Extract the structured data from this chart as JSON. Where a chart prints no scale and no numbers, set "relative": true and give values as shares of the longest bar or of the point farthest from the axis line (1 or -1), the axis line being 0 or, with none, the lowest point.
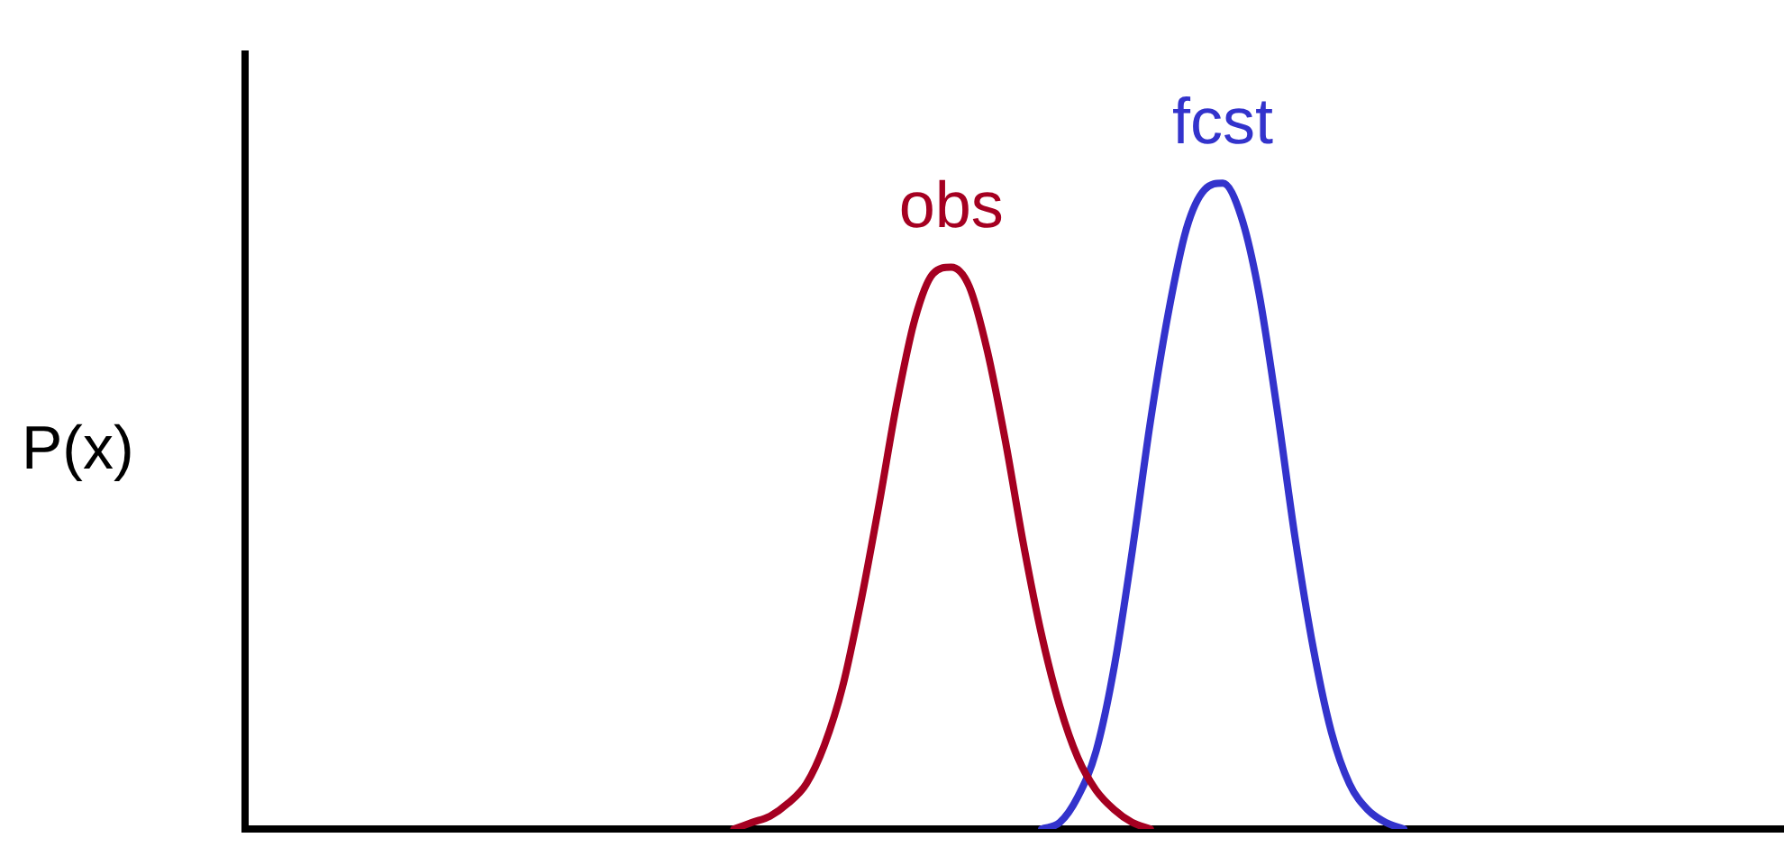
{
  "chart_data": {
    "type": "line",
    "ylabel": "P(x)",
    "relative": true,
    "grid": false,
    "legend": false,
    "marker": "none",
    "line_style": "solid",
    "categories": [
      null,
      null,
      null,
      null,
      null,
      null,
      null,
      null,
      null,
      null,
      null,
      null,
      null,
      null,
      null,
      null,
      null,
      null,
      null,
      null,
      null,
      null,
      null,
      null,
      null,
      null,
      null,
      null,
      null,
      null,
      null,
      null,
      null,
      null,
      null,
      null,
      null,
      null,
      null,
      null,
      null,
      null,
      null,
      null,
      null,
      null,
      null,
      null,
      null,
      null,
      null,
      null,
      null,
      null,
      null,
      null,
      null,
      null,
      null,
      null,
      null,
      null,
      null,
      null,
      null,
      null,
      null,
      null,
      null,
      null,
      null,
      null,
      null,
      null,
      null,
      null,
      null,
      null,
      null,
      null,
      null,
      null,
      null,
      null,
      null,
      null
    ],
    "series": [
      {
        "name": "obs",
        "color": "#a50021",
        "values": [
          null,
          null,
          null,
          null,
          null,
          null,
          null,
          null,
          null,
          null,
          null,
          null,
          null,
          null,
          null,
          null,
          null,
          null,
          null,
          null,
          null,
          null,
          null,
          null,
          null,
          null,
          null,
          0,
          0.01,
          0.02,
          0.04,
          0.07,
          0.13,
          0.22,
          0.35,
          0.5,
          0.66,
          0.79,
          0.86,
          0.87,
          0.84,
          0.74,
          0.6,
          0.44,
          0.3,
          0.19,
          0.11,
          0.06,
          0.03,
          0.01,
          0,
          null,
          null,
          null,
          null,
          null,
          null,
          null,
          null,
          null,
          null,
          null,
          null,
          null,
          null,
          null,
          null,
          null,
          null,
          null,
          null,
          null,
          null,
          null,
          null,
          null,
          null,
          null,
          null,
          null,
          null,
          null,
          null,
          null,
          null,
          null
        ]
      },
      {
        "name": "fcst",
        "color": "#3333cc",
        "values": [
          null,
          null,
          null,
          null,
          null,
          null,
          null,
          null,
          null,
          null,
          null,
          null,
          null,
          null,
          null,
          null,
          null,
          null,
          null,
          null,
          null,
          null,
          null,
          null,
          null,
          null,
          null,
          null,
          null,
          null,
          null,
          null,
          null,
          null,
          null,
          null,
          null,
          null,
          null,
          null,
          null,
          null,
          null,
          null,
          0,
          0.01,
          0.05,
          0.12,
          0.25,
          0.43,
          0.63,
          0.8,
          0.93,
          0.99,
          1,
          0.95,
          0.83,
          0.65,
          0.45,
          0.28,
          0.15,
          0.07,
          0.03,
          0.01,
          0,
          null,
          null,
          null,
          null,
          null,
          null,
          null,
          null,
          null,
          null,
          null,
          null,
          null,
          null,
          null,
          null,
          null,
          null,
          null,
          null,
          null
        ]
      }
    ]
  }
}
